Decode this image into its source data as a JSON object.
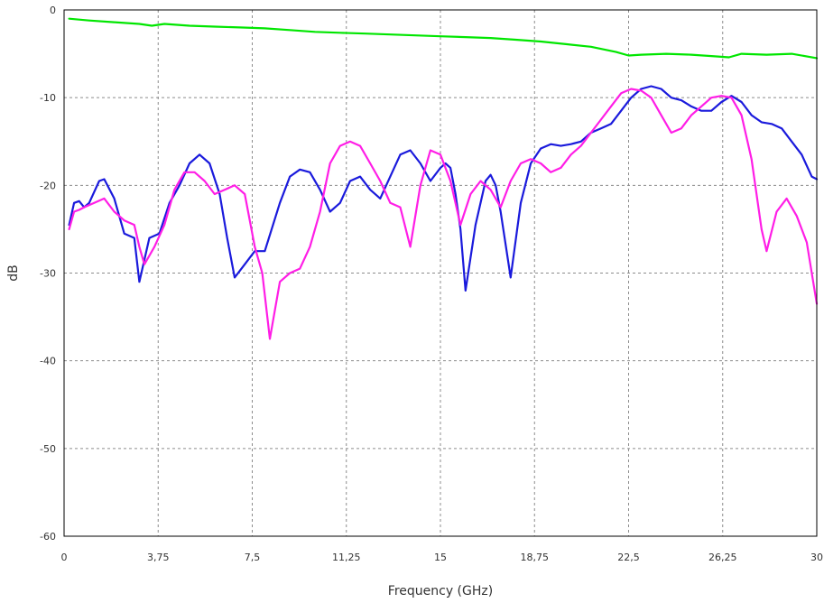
{
  "chart_data": {
    "type": "line",
    "xlabel": "Frequency (GHz)",
    "ylabel": "dB",
    "xlim": [
      0,
      30
    ],
    "ylim": [
      -60,
      0
    ],
    "xticks": [
      0,
      3.75,
      7.5,
      11.25,
      15,
      18.75,
      22.5,
      26.25,
      30
    ],
    "xtick_labels": [
      "0",
      "3,75",
      "7,5",
      "11,25",
      "15",
      "18,75",
      "22,5",
      "26,25",
      "30"
    ],
    "yticks": [
      0,
      -10,
      -20,
      -30,
      -40,
      -50,
      -60
    ],
    "ytick_labels": [
      "0",
      "-10",
      "-20",
      "-30",
      "-40",
      "-50",
      "-60"
    ],
    "grid": true,
    "series": [
      {
        "color": "#00e600",
        "x": [
          0.2,
          1,
          2,
          3,
          3.5,
          4,
          5,
          6,
          7,
          8,
          9,
          10,
          11,
          12,
          13,
          14,
          15,
          16,
          17,
          18,
          19,
          20,
          21,
          22,
          22.5,
          23,
          24,
          25,
          26,
          26.5,
          27,
          28,
          29,
          30
        ],
        "y": [
          -1.0,
          -1.2,
          -1.4,
          -1.6,
          -1.8,
          -1.6,
          -1.8,
          -1.9,
          -2.0,
          -2.1,
          -2.3,
          -2.5,
          -2.6,
          -2.7,
          -2.8,
          -2.9,
          -3.0,
          -3.1,
          -3.2,
          -3.4,
          -3.6,
          -3.9,
          -4.2,
          -4.8,
          -5.2,
          -5.1,
          -5.0,
          -5.1,
          -5.3,
          -5.4,
          -5.0,
          -5.1,
          -5.0,
          -5.5
        ]
      },
      {
        "color": "#1a1adc",
        "x": [
          0.2,
          0.4,
          0.6,
          0.8,
          1.0,
          1.4,
          1.6,
          2.0,
          2.4,
          2.8,
          3.0,
          3.4,
          3.8,
          4.2,
          4.6,
          5.0,
          5.4,
          5.8,
          6.2,
          6.5,
          6.8,
          7.2,
          7.6,
          8.0,
          8.6,
          9.0,
          9.4,
          9.8,
          10.2,
          10.6,
          11.0,
          11.4,
          11.8,
          12.2,
          12.6,
          13.0,
          13.4,
          13.8,
          14.2,
          14.6,
          15.0,
          15.2,
          15.4,
          15.6,
          15.8,
          16.0,
          16.4,
          16.8,
          17.0,
          17.2,
          17.4,
          17.8,
          18.2,
          18.6,
          19.0,
          19.4,
          19.8,
          20.2,
          20.6,
          21.0,
          21.4,
          21.8,
          22.2,
          22.6,
          23.0,
          23.4,
          23.8,
          24.2,
          24.6,
          25.0,
          25.4,
          25.8,
          26.2,
          26.6,
          27.0,
          27.4,
          27.8,
          28.2,
          28.6,
          29.0,
          29.4,
          29.8,
          30.0
        ],
        "y": [
          -24.5,
          -22.0,
          -21.8,
          -22.5,
          -22.0,
          -19.5,
          -19.3,
          -21.5,
          -25.5,
          -26.0,
          -31.0,
          -26.0,
          -25.5,
          -22.0,
          -20.0,
          -17.5,
          -16.5,
          -17.5,
          -21.0,
          -26.0,
          -30.5,
          -29.0,
          -27.5,
          -27.5,
          -22.0,
          -19.0,
          -18.2,
          -18.5,
          -20.5,
          -23.0,
          -22.0,
          -19.5,
          -19.0,
          -20.5,
          -21.5,
          -19.0,
          -16.5,
          -16.0,
          -17.5,
          -19.5,
          -18.0,
          -17.5,
          -18.0,
          -21.0,
          -25.0,
          -32.0,
          -24.5,
          -19.5,
          -18.8,
          -20.0,
          -23.0,
          -30.5,
          -22.0,
          -17.5,
          -15.8,
          -15.3,
          -15.5,
          -15.3,
          -15.0,
          -14.0,
          -13.5,
          -13.0,
          -11.5,
          -10.0,
          -9.0,
          -8.7,
          -9.0,
          -10.0,
          -10.3,
          -11.0,
          -11.5,
          -11.5,
          -10.5,
          -9.8,
          -10.5,
          -12.0,
          -12.8,
          -13.0,
          -13.5,
          -15.0,
          -16.5,
          -19.0,
          -19.3
        ]
      },
      {
        "color": "#ff1ee6",
        "x": [
          0.2,
          0.4,
          0.6,
          0.8,
          1.2,
          1.6,
          2.0,
          2.4,
          2.8,
          3.0,
          3.2,
          3.6,
          4.0,
          4.4,
          4.8,
          5.2,
          5.6,
          6.0,
          6.4,
          6.8,
          7.2,
          7.6,
          7.9,
          8.2,
          8.6,
          9.0,
          9.4,
          9.8,
          10.2,
          10.6,
          11.0,
          11.4,
          11.8,
          12.2,
          12.6,
          13.0,
          13.4,
          13.8,
          14.2,
          14.6,
          15.0,
          15.4,
          15.8,
          16.2,
          16.6,
          17.0,
          17.4,
          17.8,
          18.2,
          18.6,
          19.0,
          19.4,
          19.8,
          20.2,
          20.6,
          21.0,
          21.4,
          21.8,
          22.2,
          22.6,
          23.0,
          23.4,
          23.8,
          24.2,
          24.6,
          25.0,
          25.4,
          25.8,
          26.2,
          26.6,
          27.0,
          27.4,
          27.8,
          28.0,
          28.4,
          28.8,
          29.2,
          29.6,
          30.0
        ],
        "y": [
          -25.0,
          -23.0,
          -22.8,
          -22.5,
          -22.0,
          -21.5,
          -23.0,
          -24.0,
          -24.5,
          -27.0,
          -29.0,
          -27.0,
          -24.5,
          -20.5,
          -18.5,
          -18.5,
          -19.5,
          -21.0,
          -20.5,
          -20.0,
          -21.0,
          -27.0,
          -30.0,
          -37.5,
          -31.0,
          -30.0,
          -29.5,
          -27.0,
          -23.0,
          -17.5,
          -15.5,
          -15.0,
          -15.5,
          -17.5,
          -19.5,
          -22.0,
          -22.5,
          -27.0,
          -20.0,
          -16.0,
          -16.5,
          -19.5,
          -24.5,
          -21.0,
          -19.5,
          -20.5,
          -22.5,
          -19.5,
          -17.5,
          -17.0,
          -17.5,
          -18.5,
          -18.0,
          -16.5,
          -15.5,
          -14.0,
          -12.5,
          -11.0,
          -9.5,
          -9.0,
          -9.2,
          -10.0,
          -12.0,
          -14.0,
          -13.5,
          -12.0,
          -11.0,
          -10.0,
          -9.8,
          -10.0,
          -12.0,
          -17.0,
          -25.0,
          -27.5,
          -23.0,
          -21.5,
          -23.5,
          -26.5,
          -33.5
        ]
      }
    ]
  }
}
